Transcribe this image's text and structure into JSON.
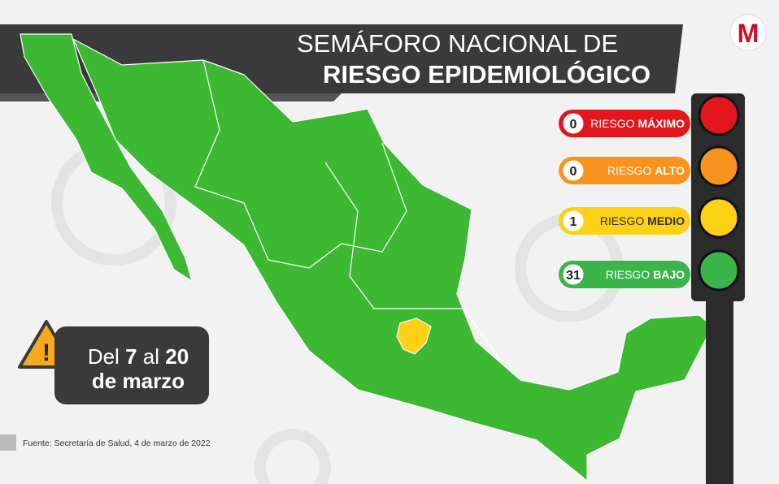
{
  "logo": "M",
  "title": {
    "line1": "SEMÁFORO NACIONAL DE",
    "line2": "RIESGO EPIDEMIOLÓGICO"
  },
  "levels": [
    {
      "count": 0,
      "prefix": "RIESGO",
      "level": "MÁXIMO",
      "color": "#e3161b"
    },
    {
      "count": 0,
      "prefix": "RIESGO",
      "level": "ALTO",
      "color": "#f7941d"
    },
    {
      "count": 1,
      "prefix": "RIESGO",
      "level": "MEDIO",
      "color": "#fcd116"
    },
    {
      "count": 31,
      "prefix": "RIESGO",
      "level": "BAJO",
      "color": "#3ab54a"
    }
  ],
  "period": {
    "text1": "Del",
    "start": 7,
    "text2": "al",
    "end": 20,
    "line2": "de marzo"
  },
  "source": "Fuente: Secretaría de Salud, 4 de marzo de 2022"
}
